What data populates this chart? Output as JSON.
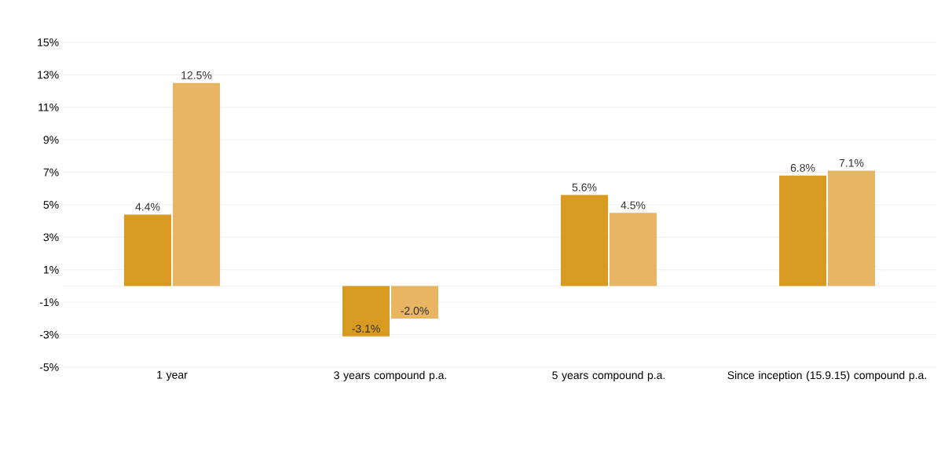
{
  "chart_data": {
    "type": "bar",
    "categories": [
      "1 year",
      "3 years compound p.a.",
      "5 years compound p.a.",
      "Since inception (15.9.15) compound p.a."
    ],
    "series": [
      {
        "color": "#d99a21",
        "values": [
          4.4,
          -3.1,
          5.6,
          6.8
        ],
        "value_labels": [
          "4.4%",
          "-3.1%",
          "5.6%",
          "6.8%"
        ]
      },
      {
        "color": "#e8b662",
        "values": [
          12.5,
          -2.0,
          4.5,
          7.1
        ],
        "value_labels": [
          "12.5%",
          "-2.0%",
          "4.5%",
          "7.1%"
        ]
      }
    ],
    "ylim": [
      -5,
      15
    ],
    "yticks": [
      {
        "value": -5,
        "label": "-5%"
      },
      {
        "value": -3,
        "label": "-3%"
      },
      {
        "value": -1,
        "label": "-1%"
      },
      {
        "value": 1,
        "label": "1%"
      },
      {
        "value": 3,
        "label": "3%"
      },
      {
        "value": 5,
        "label": "5%"
      },
      {
        "value": 7,
        "label": "7%"
      },
      {
        "value": 9,
        "label": "9%"
      },
      {
        "value": 11,
        "label": "11%"
      },
      {
        "value": 13,
        "label": "13%"
      },
      {
        "value": 15,
        "label": "15%"
      }
    ],
    "grid": "y"
  }
}
